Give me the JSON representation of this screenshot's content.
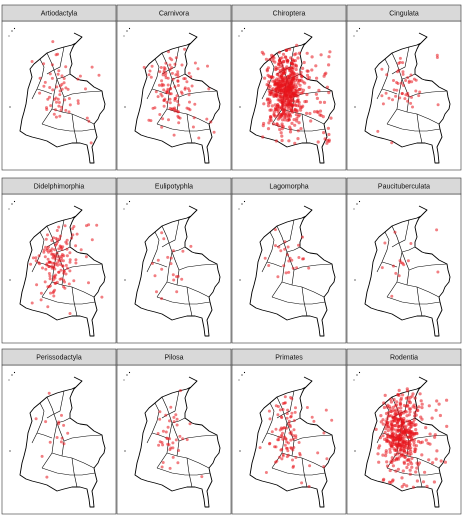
{
  "panels": [
    {
      "title": "Artiodactyla"
    },
    {
      "title": "Carnivora"
    },
    {
      "title": "Chiroptera"
    },
    {
      "title": "Cingulata"
    },
    {
      "title": "Didelphimorphia"
    },
    {
      "title": "Eulipotyphla"
    },
    {
      "title": "Lagomorpha"
    },
    {
      "title": "Paucituberculata"
    },
    {
      "title": "Perissodactyla"
    },
    {
      "title": "Pilosa"
    },
    {
      "title": "Primates"
    },
    {
      "title": "Rodentia"
    }
  ]
}
